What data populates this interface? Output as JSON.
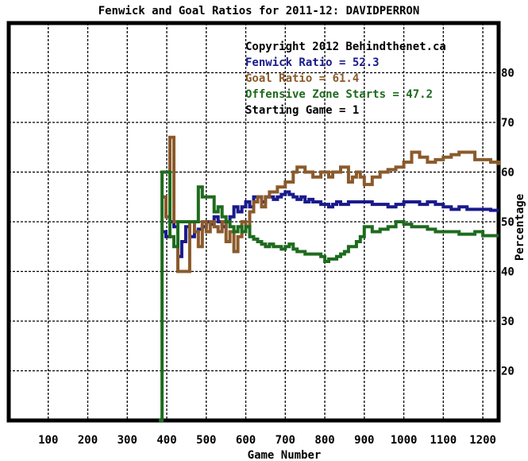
{
  "chart_data": {
    "type": "line",
    "title": "Fenwick and Goal Ratios for 2011-12: DAVIDPERRON",
    "xlabel": "Game Number",
    "ylabel": "Percentage",
    "xlim": [
      0,
      1240
    ],
    "ylim": [
      10,
      90
    ],
    "x_ticks": [
      100,
      200,
      300,
      400,
      500,
      600,
      700,
      800,
      900,
      1000,
      1100,
      1200
    ],
    "y_ticks": [
      20,
      30,
      40,
      50,
      60,
      70,
      80
    ],
    "grid": true,
    "legend_placement": "top-right",
    "annotations": [
      {
        "text": "Copyright 2012 Behindthenet.ca",
        "color": "#000000"
      },
      {
        "text": "Fenwick Ratio = 52.3",
        "color": "#1a1a8c"
      },
      {
        "text": "Goal Ratio = 61.4",
        "color": "#8b5a2b"
      },
      {
        "text": "Offensive Zone Starts = 47.2",
        "color": "#1e6b1e"
      },
      {
        "text": "Starting Game = 1",
        "color": "#000000"
      }
    ],
    "series": [
      {
        "name": "Fenwick Ratio",
        "color": "#1a1a8c",
        "x": [
          388,
          398,
          408,
          418,
          428,
          438,
          448,
          458,
          470,
          480,
          490,
          500,
          510,
          520,
          530,
          540,
          550,
          560,
          570,
          580,
          590,
          600,
          610,
          620,
          630,
          640,
          650,
          660,
          670,
          680,
          690,
          700,
          710,
          720,
          730,
          740,
          750,
          760,
          770,
          780,
          790,
          800,
          810,
          820,
          830,
          840,
          850,
          860,
          870,
          880,
          890,
          900,
          920,
          940,
          960,
          980,
          1000,
          1020,
          1040,
          1060,
          1080,
          1100,
          1120,
          1140,
          1160,
          1180,
          1200,
          1220,
          1240
        ],
        "y": [
          48,
          47,
          50,
          49,
          43,
          46,
          49,
          47,
          48,
          48.5,
          49,
          50,
          49.5,
          51,
          50,
          49,
          50,
          51,
          53,
          52,
          53,
          54,
          53,
          55,
          55,
          54,
          55,
          55,
          54.5,
          55,
          55.5,
          56,
          55.5,
          55,
          54.5,
          55,
          54,
          54.5,
          54,
          54,
          53.5,
          53.5,
          53,
          53.5,
          54,
          53.5,
          53.5,
          54,
          54,
          54,
          54,
          54,
          53.5,
          53.5,
          53,
          53.5,
          54,
          54,
          53.5,
          54,
          53.5,
          53,
          52.5,
          53,
          52.5,
          52.5,
          52.5,
          52.3,
          52.3
        ]
      },
      {
        "name": "Goal Ratio",
        "color": "#8b5a2b",
        "x": [
          388,
          398,
          408,
          418,
          428,
          438,
          448,
          458,
          470,
          480,
          490,
          500,
          510,
          520,
          530,
          540,
          550,
          560,
          570,
          580,
          590,
          600,
          610,
          620,
          630,
          640,
          650,
          660,
          670,
          680,
          690,
          700,
          710,
          720,
          730,
          740,
          750,
          760,
          770,
          780,
          790,
          800,
          810,
          820,
          830,
          840,
          850,
          860,
          870,
          880,
          890,
          900,
          920,
          940,
          960,
          980,
          1000,
          1020,
          1040,
          1060,
          1080,
          1100,
          1120,
          1140,
          1160,
          1180,
          1200,
          1220,
          1240
        ],
        "y": [
          55,
          51,
          67,
          50,
          40,
          40,
          40,
          50,
          48,
          45,
          50,
          48,
          50,
          49,
          48,
          50,
          46,
          48,
          44,
          47,
          50,
          49,
          52,
          54,
          55,
          53,
          55,
          56,
          56,
          57,
          57,
          58,
          58,
          60,
          61,
          61,
          60,
          60,
          59,
          59,
          60,
          60,
          59,
          60,
          60,
          61,
          61,
          58,
          59,
          60,
          59,
          57.5,
          59,
          60,
          60.5,
          61,
          62,
          64,
          63,
          62,
          62.5,
          63,
          63.5,
          64,
          64,
          62.5,
          62.5,
          62,
          61.4
        ]
      },
      {
        "name": "Offensive Zone Starts",
        "color": "#1e6b1e",
        "x": [
          380,
          388,
          398,
          408,
          418,
          428,
          438,
          448,
          458,
          470,
          480,
          490,
          500,
          510,
          520,
          530,
          540,
          550,
          560,
          570,
          580,
          590,
          600,
          610,
          620,
          630,
          640,
          650,
          660,
          670,
          680,
          690,
          700,
          710,
          720,
          730,
          740,
          750,
          760,
          770,
          780,
          790,
          800,
          810,
          820,
          830,
          840,
          850,
          860,
          870,
          880,
          890,
          900,
          920,
          940,
          960,
          980,
          1000,
          1020,
          1040,
          1060,
          1080,
          1100,
          1120,
          1140,
          1160,
          1180,
          1200,
          1220,
          1240
        ],
        "y": [
          10,
          60,
          60,
          47,
          45,
          50,
          50,
          50,
          50,
          50,
          57,
          55,
          55,
          55,
          52,
          53,
          51,
          50,
          49,
          48,
          49,
          48,
          49,
          47,
          46.5,
          46,
          45.5,
          45,
          45.5,
          45,
          45,
          44.5,
          45,
          45.5,
          44.5,
          44,
          44,
          43.5,
          43.5,
          43.5,
          43.5,
          43,
          42,
          42.5,
          42.5,
          43,
          43.5,
          44,
          45,
          45,
          46,
          47,
          49,
          48,
          48.5,
          49,
          50,
          49.5,
          49,
          49,
          48.5,
          48,
          48,
          48,
          47.5,
          47.5,
          48,
          47.2,
          47.2,
          47.2
        ]
      }
    ]
  }
}
